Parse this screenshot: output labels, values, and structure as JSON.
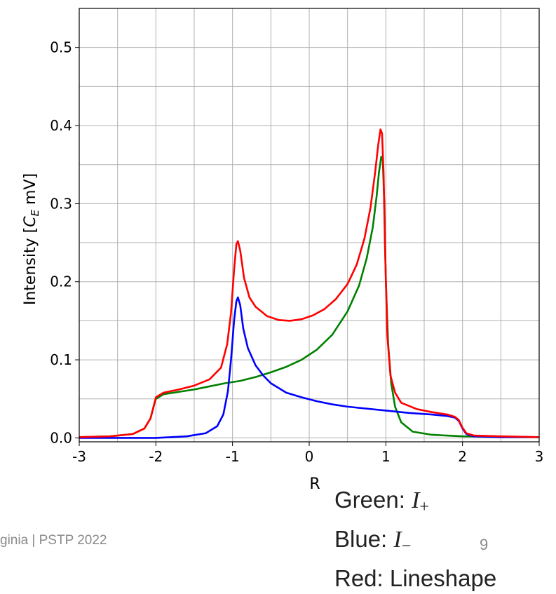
{
  "footer_text": "ginia | PSTP 2022",
  "page_number": "9",
  "legend": {
    "green_prefix": "Green: ",
    "blue_prefix": "Blue: ",
    "red_line": "Red: Lineshape",
    "green_symbol": "I",
    "green_sub": "+",
    "blue_symbol": "I",
    "blue_sub": "−"
  },
  "chart_data": {
    "type": "line",
    "xlabel": "R",
    "ylabel_prefix": "Intensity [",
    "ylabel_symbol": "C",
    "ylabel_sub": "E",
    "ylabel_suffix": " mV]",
    "xlim": [
      -3,
      3
    ],
    "ylim": [
      -0.005,
      0.55
    ],
    "xticks": [
      -3,
      -2,
      -1,
      0,
      1,
      2,
      3
    ],
    "xtick_labels": [
      "-3",
      "-2",
      "-1",
      "0",
      "1",
      "2",
      "3"
    ],
    "yticks": [
      0.0,
      0.1,
      0.2,
      0.3,
      0.4,
      0.5
    ],
    "ytick_labels": [
      "0.0",
      "0.1",
      "0.2",
      "0.3",
      "0.4",
      "0.5"
    ],
    "grid": true,
    "minor_grid_step_x": 0.5,
    "minor_grid_step_y": 0.05,
    "series": [
      {
        "color": "#008000",
        "points": [
          [
            -3,
            0.001
          ],
          [
            -2.6,
            0.002
          ],
          [
            -2.3,
            0.005
          ],
          [
            -2.15,
            0.012
          ],
          [
            -2.07,
            0.025
          ],
          [
            -2.03,
            0.04
          ],
          [
            -2.0,
            0.05
          ],
          [
            -1.9,
            0.056
          ],
          [
            -1.7,
            0.059
          ],
          [
            -1.5,
            0.062
          ],
          [
            -1.3,
            0.066
          ],
          [
            -1.1,
            0.07
          ],
          [
            -0.9,
            0.073
          ],
          [
            -0.7,
            0.078
          ],
          [
            -0.5,
            0.084
          ],
          [
            -0.3,
            0.091
          ],
          [
            -0.1,
            0.1
          ],
          [
            0.1,
            0.113
          ],
          [
            0.3,
            0.132
          ],
          [
            0.5,
            0.162
          ],
          [
            0.65,
            0.195
          ],
          [
            0.75,
            0.23
          ],
          [
            0.83,
            0.27
          ],
          [
            0.88,
            0.31
          ],
          [
            0.91,
            0.34
          ],
          [
            0.94,
            0.36
          ],
          [
            0.96,
            0.355
          ],
          [
            0.98,
            0.3
          ],
          [
            1.0,
            0.2
          ],
          [
            1.03,
            0.12
          ],
          [
            1.07,
            0.07
          ],
          [
            1.12,
            0.04
          ],
          [
            1.2,
            0.02
          ],
          [
            1.35,
            0.008
          ],
          [
            1.6,
            0.004
          ],
          [
            2.0,
            0.002
          ],
          [
            3.0,
            0.001
          ]
        ]
      },
      {
        "color": "#0000ff",
        "points": [
          [
            -3,
            0.0
          ],
          [
            -2.0,
            0.0
          ],
          [
            -1.6,
            0.002
          ],
          [
            -1.35,
            0.006
          ],
          [
            -1.2,
            0.015
          ],
          [
            -1.12,
            0.03
          ],
          [
            -1.06,
            0.06
          ],
          [
            -1.02,
            0.1
          ],
          [
            -0.98,
            0.15
          ],
          [
            -0.95,
            0.175
          ],
          [
            -0.93,
            0.18
          ],
          [
            -0.9,
            0.17
          ],
          [
            -0.86,
            0.14
          ],
          [
            -0.8,
            0.115
          ],
          [
            -0.7,
            0.093
          ],
          [
            -0.6,
            0.08
          ],
          [
            -0.5,
            0.07
          ],
          [
            -0.3,
            0.058
          ],
          [
            -0.1,
            0.052
          ],
          [
            0.1,
            0.047
          ],
          [
            0.3,
            0.043
          ],
          [
            0.5,
            0.04
          ],
          [
            0.7,
            0.038
          ],
          [
            1.0,
            0.035
          ],
          [
            1.3,
            0.032
          ],
          [
            1.6,
            0.03
          ],
          [
            1.8,
            0.028
          ],
          [
            1.9,
            0.026
          ],
          [
            1.95,
            0.022
          ],
          [
            2.0,
            0.012
          ],
          [
            2.05,
            0.005
          ],
          [
            2.15,
            0.002
          ],
          [
            2.5,
            0.001
          ],
          [
            3.0,
            0.001
          ]
        ]
      },
      {
        "color": "#ff0000",
        "points": [
          [
            -3,
            0.001
          ],
          [
            -2.6,
            0.002
          ],
          [
            -2.3,
            0.005
          ],
          [
            -2.15,
            0.012
          ],
          [
            -2.07,
            0.025
          ],
          [
            -2.03,
            0.04
          ],
          [
            -2.0,
            0.052
          ],
          [
            -1.9,
            0.058
          ],
          [
            -1.7,
            0.062
          ],
          [
            -1.5,
            0.067
          ],
          [
            -1.3,
            0.075
          ],
          [
            -1.15,
            0.09
          ],
          [
            -1.07,
            0.12
          ],
          [
            -1.02,
            0.16
          ],
          [
            -0.98,
            0.215
          ],
          [
            -0.95,
            0.248
          ],
          [
            -0.93,
            0.252
          ],
          [
            -0.9,
            0.24
          ],
          [
            -0.85,
            0.205
          ],
          [
            -0.78,
            0.18
          ],
          [
            -0.7,
            0.168
          ],
          [
            -0.55,
            0.156
          ],
          [
            -0.4,
            0.151
          ],
          [
            -0.25,
            0.15
          ],
          [
            -0.1,
            0.152
          ],
          [
            0.05,
            0.157
          ],
          [
            0.2,
            0.165
          ],
          [
            0.35,
            0.178
          ],
          [
            0.5,
            0.197
          ],
          [
            0.62,
            0.222
          ],
          [
            0.72,
            0.255
          ],
          [
            0.8,
            0.295
          ],
          [
            0.86,
            0.34
          ],
          [
            0.9,
            0.375
          ],
          [
            0.93,
            0.395
          ],
          [
            0.95,
            0.39
          ],
          [
            0.97,
            0.34
          ],
          [
            0.99,
            0.24
          ],
          [
            1.02,
            0.13
          ],
          [
            1.06,
            0.08
          ],
          [
            1.12,
            0.058
          ],
          [
            1.2,
            0.045
          ],
          [
            1.4,
            0.037
          ],
          [
            1.6,
            0.033
          ],
          [
            1.8,
            0.03
          ],
          [
            1.9,
            0.027
          ],
          [
            1.95,
            0.023
          ],
          [
            2.0,
            0.013
          ],
          [
            2.05,
            0.006
          ],
          [
            2.15,
            0.003
          ],
          [
            2.5,
            0.002
          ],
          [
            3.0,
            0.001
          ]
        ]
      }
    ]
  }
}
